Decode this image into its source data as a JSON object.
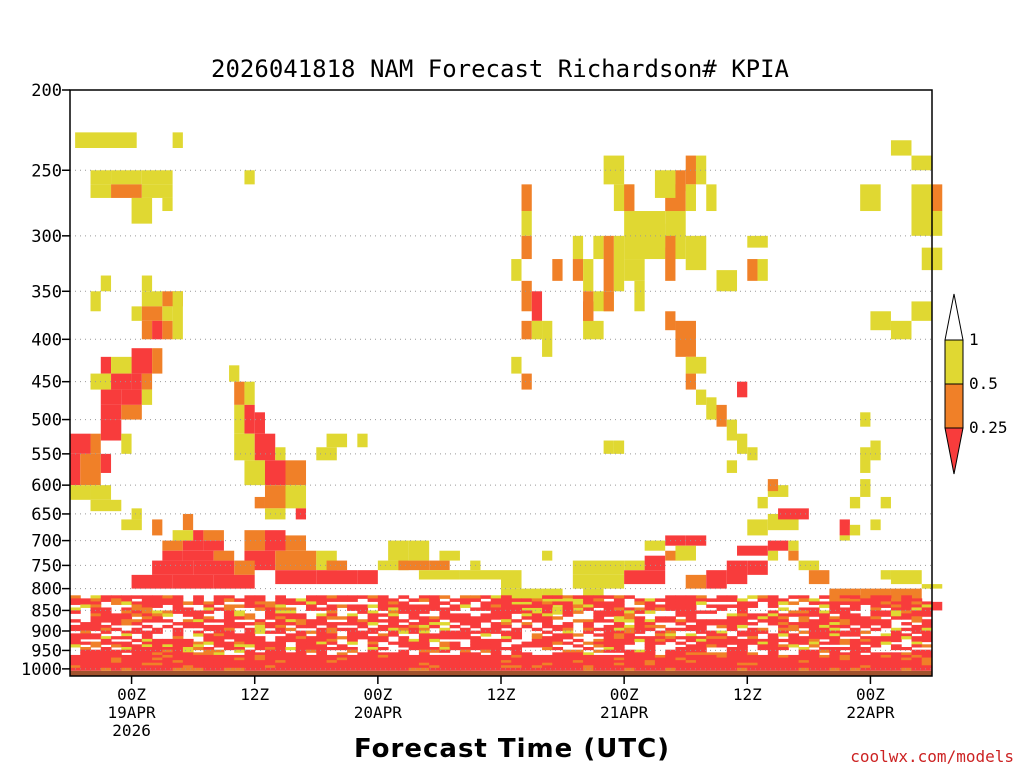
{
  "chart_data": {
    "type": "heatmap",
    "title": "2026041818 NAM Forecast Richardson# KPIA",
    "xlabel": "Forecast Time (UTC)",
    "ylabel": "",
    "credit": "coolwx.com/models",
    "x_range_hours": [
      -6,
      78
    ],
    "y_range_hpa": [
      200,
      1020
    ],
    "y_scale": "log-pressure (inverted)",
    "y_ticks": [
      200,
      250,
      300,
      350,
      400,
      450,
      500,
      550,
      600,
      650,
      700,
      750,
      800,
      850,
      900,
      950,
      1000
    ],
    "x_ticks": [
      {
        "hour": 0,
        "lines": [
          "00Z",
          "19APR",
          "2026"
        ]
      },
      {
        "hour": 12,
        "lines": [
          "12Z"
        ]
      },
      {
        "hour": 24,
        "lines": [
          "00Z",
          "20APR"
        ]
      },
      {
        "hour": 36,
        "lines": [
          "12Z"
        ]
      },
      {
        "hour": 48,
        "lines": [
          "00Z",
          "21APR"
        ]
      },
      {
        "hour": 60,
        "lines": [
          "12Z"
        ]
      },
      {
        "hour": 72,
        "lines": [
          "00Z",
          "22APR"
        ]
      }
    ],
    "grid": "dotted horizontal at pressure ticks",
    "legend": {
      "placement": "right",
      "labels": [
        "1",
        "0.5",
        "0.25"
      ],
      "bins": [
        {
          "range": [
            0.5,
            1.0
          ],
          "color": "#e0d832"
        },
        {
          "range": [
            0.25,
            0.5
          ],
          "color": "#f08028"
        },
        {
          "range": [
            0.0,
            0.25
          ],
          "color": "#f83c3c"
        }
      ]
    },
    "ground": {
      "color": "#a0522d"
    },
    "cells_hours_hpa_category": [
      [
        -5.5,
        225,
        0.5,
        235,
        1
      ],
      [
        -4,
        250,
        -2,
        260,
        1
      ],
      [
        -2,
        250,
        1,
        260,
        1
      ],
      [
        1,
        250,
        4,
        260,
        1
      ],
      [
        -4,
        260,
        -2,
        270,
        1
      ],
      [
        -2,
        260,
        1,
        270,
        2
      ],
      [
        1,
        260,
        4,
        270,
        1
      ],
      [
        0,
        270,
        2,
        290,
        1
      ],
      [
        4,
        225,
        5,
        235,
        1
      ],
      [
        -3,
        335,
        -2,
        350,
        1
      ],
      [
        1,
        335,
        2,
        350,
        1
      ],
      [
        1,
        350,
        3,
        365,
        1
      ],
      [
        3,
        350,
        5,
        365,
        2
      ],
      [
        -4,
        350,
        -3,
        370,
        1
      ],
      [
        0,
        365,
        1,
        380,
        1
      ],
      [
        1,
        365,
        3,
        380,
        2
      ],
      [
        3,
        365,
        4,
        380,
        1
      ],
      [
        1,
        380,
        2,
        400,
        2
      ],
      [
        2,
        380,
        3,
        400,
        3
      ],
      [
        3,
        380,
        4,
        400,
        2
      ],
      [
        4,
        350,
        5,
        400,
        1
      ],
      [
        -3,
        420,
        -2,
        440,
        3
      ],
      [
        -2,
        420,
        0,
        440,
        1
      ],
      [
        0,
        410,
        2,
        440,
        3
      ],
      [
        2,
        410,
        3,
        440,
        2
      ],
      [
        -4,
        440,
        -2,
        460,
        1
      ],
      [
        -2,
        440,
        0,
        460,
        3
      ],
      [
        0,
        440,
        1,
        460,
        3
      ],
      [
        1,
        440,
        2,
        460,
        2
      ],
      [
        -3,
        460,
        -1,
        480,
        3
      ],
      [
        -1,
        460,
        1,
        480,
        3
      ],
      [
        1,
        460,
        2,
        480,
        1
      ],
      [
        -3,
        480,
        -1,
        500,
        3
      ],
      [
        -1,
        480,
        1,
        500,
        2
      ],
      [
        -6,
        520,
        -4,
        550,
        3
      ],
      [
        -4,
        520,
        -3,
        550,
        2
      ],
      [
        -3,
        500,
        -1,
        530,
        3
      ],
      [
        -1,
        520,
        0,
        550,
        1
      ],
      [
        -6,
        550,
        -5,
        600,
        3
      ],
      [
        -5,
        550,
        -3,
        600,
        2
      ],
      [
        -3,
        550,
        -2,
        580,
        3
      ],
      [
        -6,
        600,
        -4,
        625,
        1
      ],
      [
        -4,
        600,
        -2,
        625,
        1
      ],
      [
        -4,
        625,
        -1,
        645,
        1
      ],
      [
        0,
        640,
        1,
        660,
        1
      ],
      [
        3,
        270,
        4,
        280,
        1
      ],
      [
        9.5,
        430,
        10.5,
        450,
        1
      ],
      [
        10,
        450,
        11,
        480,
        2
      ],
      [
        11,
        450,
        12,
        480,
        1
      ],
      [
        10,
        480,
        11,
        520,
        1
      ],
      [
        11,
        480,
        12,
        520,
        3
      ],
      [
        12,
        490,
        13,
        520,
        3
      ],
      [
        10,
        520,
        12,
        560,
        1
      ],
      [
        12,
        520,
        14,
        560,
        3
      ],
      [
        14,
        540,
        15,
        560,
        1
      ],
      [
        11,
        560,
        13,
        600,
        1
      ],
      [
        13,
        560,
        15,
        600,
        3
      ],
      [
        15,
        560,
        17,
        600,
        2
      ],
      [
        13,
        600,
        15,
        640,
        2
      ],
      [
        15,
        600,
        17,
        640,
        1
      ],
      [
        12,
        620,
        13,
        640,
        2
      ],
      [
        11,
        250,
        12,
        260,
        1
      ],
      [
        22,
        520,
        23,
        540,
        1
      ],
      [
        13,
        640,
        15,
        660,
        1
      ],
      [
        16,
        640,
        17,
        660,
        3
      ],
      [
        -1,
        660,
        1,
        680,
        1
      ],
      [
        2,
        660,
        3,
        690,
        2
      ],
      [
        5,
        650,
        6,
        680,
        2
      ],
      [
        4,
        680,
        6,
        700,
        1
      ],
      [
        6,
        680,
        7,
        700,
        3
      ],
      [
        7,
        680,
        9,
        700,
        2
      ],
      [
        3,
        700,
        5,
        720,
        2
      ],
      [
        5,
        700,
        7,
        720,
        3
      ],
      [
        7,
        700,
        9,
        720,
        3
      ],
      [
        3,
        720,
        5,
        740,
        3
      ],
      [
        5,
        720,
        8,
        740,
        3
      ],
      [
        8,
        720,
        10,
        740,
        2
      ],
      [
        11,
        680,
        13,
        720,
        2
      ],
      [
        13,
        680,
        15,
        720,
        3
      ],
      [
        15,
        690,
        17,
        720,
        2
      ],
      [
        11,
        720,
        14,
        760,
        3
      ],
      [
        14,
        720,
        18,
        760,
        2
      ],
      [
        18,
        720,
        20,
        760,
        1
      ],
      [
        14,
        760,
        18,
        790,
        3
      ],
      [
        18,
        760,
        22,
        790,
        3
      ],
      [
        22,
        760,
        24,
        790,
        3
      ],
      [
        2,
        740,
        6,
        770,
        3
      ],
      [
        6,
        740,
        10,
        770,
        3
      ],
      [
        10,
        740,
        12,
        770,
        2
      ],
      [
        0,
        770,
        4,
        800,
        3
      ],
      [
        4,
        770,
        8,
        800,
        3
      ],
      [
        8,
        770,
        12,
        800,
        3
      ],
      [
        19,
        740,
        21,
        760,
        2
      ],
      [
        24,
        740,
        27,
        760,
        1
      ],
      [
        27,
        700,
        29,
        740,
        1
      ],
      [
        25,
        700,
        27,
        740,
        1
      ],
      [
        26,
        740,
        29,
        760,
        2
      ],
      [
        29,
        740,
        31,
        760,
        2
      ],
      [
        28,
        760,
        32,
        780,
        1
      ],
      [
        32,
        760,
        36,
        780,
        1
      ],
      [
        36,
        760,
        38,
        800,
        1
      ],
      [
        36,
        800,
        40,
        840,
        1
      ],
      [
        40,
        800,
        42,
        840,
        1
      ],
      [
        38,
        840,
        42,
        860,
        1
      ],
      [
        42,
        820,
        44,
        850,
        1
      ],
      [
        44,
        800,
        46,
        840,
        1
      ],
      [
        30,
        720,
        32,
        740,
        1
      ],
      [
        33,
        740,
        34,
        760,
        1
      ],
      [
        40,
        720,
        41,
        740,
        1
      ],
      [
        43,
        740,
        48,
        770,
        1
      ],
      [
        43,
        770,
        48,
        800,
        1
      ],
      [
        48,
        760,
        52,
        790,
        3
      ],
      [
        48,
        740,
        50,
        760,
        1
      ],
      [
        50,
        730,
        52,
        760,
        3
      ],
      [
        52,
        720,
        54,
        740,
        2
      ],
      [
        50,
        700,
        52,
        720,
        1
      ],
      [
        52,
        690,
        54,
        710,
        3
      ],
      [
        54,
        690,
        56,
        710,
        3
      ],
      [
        53,
        710,
        55,
        740,
        1
      ],
      [
        54,
        770,
        56,
        800,
        2
      ],
      [
        56,
        760,
        58,
        800,
        3
      ],
      [
        58,
        740,
        60,
        790,
        3
      ],
      [
        60,
        740,
        62,
        770,
        3
      ],
      [
        62,
        720,
        63,
        740,
        1
      ],
      [
        59,
        710,
        62,
        730,
        3
      ],
      [
        62,
        700,
        64,
        720,
        3
      ],
      [
        64,
        700,
        65,
        720,
        1
      ],
      [
        60,
        660,
        62,
        690,
        1
      ],
      [
        62,
        650,
        65,
        680,
        1
      ],
      [
        63,
        640,
        66,
        660,
        3
      ],
      [
        61,
        620,
        62,
        640,
        1
      ],
      [
        62,
        600,
        64,
        620,
        1
      ],
      [
        62,
        590,
        63,
        610,
        2
      ],
      [
        64,
        720,
        65,
        740,
        2
      ],
      [
        65,
        740,
        67,
        760,
        1
      ],
      [
        66,
        760,
        68,
        790,
        2
      ],
      [
        69,
        660,
        70,
        690,
        3
      ],
      [
        69,
        690,
        70,
        700,
        1
      ],
      [
        70,
        670,
        71,
        690,
        1
      ],
      [
        72,
        660,
        73,
        680,
        1
      ],
      [
        70,
        620,
        71,
        640,
        1
      ],
      [
        71,
        590,
        72,
        620,
        1
      ],
      [
        71,
        540,
        72,
        580,
        1
      ],
      [
        72,
        530,
        73,
        560,
        1
      ],
      [
        73,
        760,
        74,
        780,
        1
      ],
      [
        74,
        760,
        77,
        790,
        1
      ],
      [
        77,
        790,
        79,
        800,
        1
      ],
      [
        71,
        800,
        74,
        830,
        2
      ],
      [
        68,
        800,
        71,
        830,
        2
      ],
      [
        74,
        800,
        77,
        830,
        2
      ],
      [
        75,
        840,
        77,
        860,
        2
      ],
      [
        78,
        830,
        79,
        850,
        3
      ],
      [
        43,
        300,
        44,
        320,
        1
      ],
      [
        43,
        320,
        44,
        340,
        2
      ],
      [
        44,
        320,
        45,
        350,
        1
      ],
      [
        45,
        300,
        46,
        320,
        1
      ],
      [
        46,
        300,
        47,
        350,
        2
      ],
      [
        47,
        300,
        48,
        350,
        1
      ],
      [
        44,
        360,
        45,
        380,
        3
      ],
      [
        45,
        350,
        47,
        370,
        1
      ],
      [
        44,
        380,
        46,
        400,
        1
      ],
      [
        46,
        240,
        48,
        260,
        1
      ],
      [
        47,
        260,
        49,
        280,
        1
      ],
      [
        48,
        260,
        49,
        280,
        2
      ],
      [
        48,
        280,
        52,
        320,
        1
      ],
      [
        52,
        280,
        54,
        320,
        1
      ],
      [
        52,
        260,
        54,
        280,
        2
      ],
      [
        51,
        250,
        53,
        270,
        1
      ],
      [
        53,
        250,
        54,
        265,
        2
      ],
      [
        54,
        240,
        55,
        260,
        2
      ],
      [
        55,
        240,
        56,
        260,
        1
      ],
      [
        54,
        260,
        55,
        280,
        1
      ],
      [
        56,
        260,
        57,
        280,
        1
      ],
      [
        52,
        300,
        53,
        340,
        2
      ],
      [
        54,
        300,
        56,
        330,
        1
      ],
      [
        38,
        260,
        39,
        280,
        2
      ],
      [
        38,
        280,
        39,
        300,
        1
      ],
      [
        38,
        300,
        39,
        320,
        2
      ],
      [
        37,
        320,
        38,
        340,
        1
      ],
      [
        38,
        340,
        39,
        370,
        2
      ],
      [
        39,
        350,
        40,
        380,
        3
      ],
      [
        38,
        380,
        39,
        400,
        2
      ],
      [
        39,
        380,
        40,
        400,
        1
      ],
      [
        40,
        380,
        41,
        420,
        1
      ],
      [
        37,
        420,
        38,
        440,
        1
      ],
      [
        38,
        440,
        39,
        460,
        2
      ],
      [
        41,
        320,
        42,
        340,
        2
      ],
      [
        44,
        350,
        45,
        380,
        2
      ],
      [
        46,
        350,
        47,
        370,
        2
      ],
      [
        49,
        290,
        52,
        310,
        1
      ],
      [
        48,
        320,
        50,
        340,
        1
      ],
      [
        49,
        340,
        50,
        370,
        1
      ],
      [
        52,
        370,
        53,
        390,
        2
      ],
      [
        53,
        380,
        55,
        420,
        2
      ],
      [
        54,
        420,
        56,
        440,
        1
      ],
      [
        54,
        440,
        55,
        460,
        2
      ],
      [
        55,
        460,
        56,
        480,
        1
      ],
      [
        56,
        470,
        57,
        500,
        1
      ],
      [
        57,
        480,
        58,
        510,
        2
      ],
      [
        58,
        500,
        59,
        530,
        1
      ],
      [
        59,
        520,
        60,
        550,
        1
      ],
      [
        60,
        540,
        61,
        560,
        1
      ],
      [
        58,
        560,
        59,
        580,
        1
      ],
      [
        46,
        530,
        47,
        550,
        1
      ],
      [
        47,
        530,
        48,
        550,
        1
      ],
      [
        19,
        520,
        21,
        540,
        1
      ],
      [
        18,
        540,
        20,
        560,
        1
      ],
      [
        57,
        330,
        59,
        350,
        1
      ],
      [
        60,
        320,
        61,
        340,
        2
      ],
      [
        61,
        320,
        62,
        340,
        1
      ],
      [
        60,
        300,
        62,
        310,
        1
      ],
      [
        59,
        450,
        60,
        470,
        3
      ],
      [
        71,
        490,
        72,
        510,
        1
      ],
      [
        73,
        620,
        74,
        640,
        1
      ],
      [
        74,
        380,
        76,
        400,
        1
      ],
      [
        72,
        370,
        74,
        390,
        1
      ],
      [
        76,
        360,
        78,
        380,
        1
      ],
      [
        76,
        260,
        78,
        300,
        1
      ],
      [
        78,
        260,
        79,
        280,
        2
      ],
      [
        78,
        280,
        79,
        300,
        1
      ],
      [
        76,
        240,
        78,
        250,
        1
      ],
      [
        77,
        310,
        79,
        330,
        1
      ],
      [
        71,
        260,
        73,
        280,
        1
      ],
      [
        74,
        230,
        76,
        240,
        1
      ]
    ],
    "surface_band": {
      "hpa_range": [
        800,
        1000
      ],
      "pattern": "dense red/orange/yellow stripes"
    }
  }
}
